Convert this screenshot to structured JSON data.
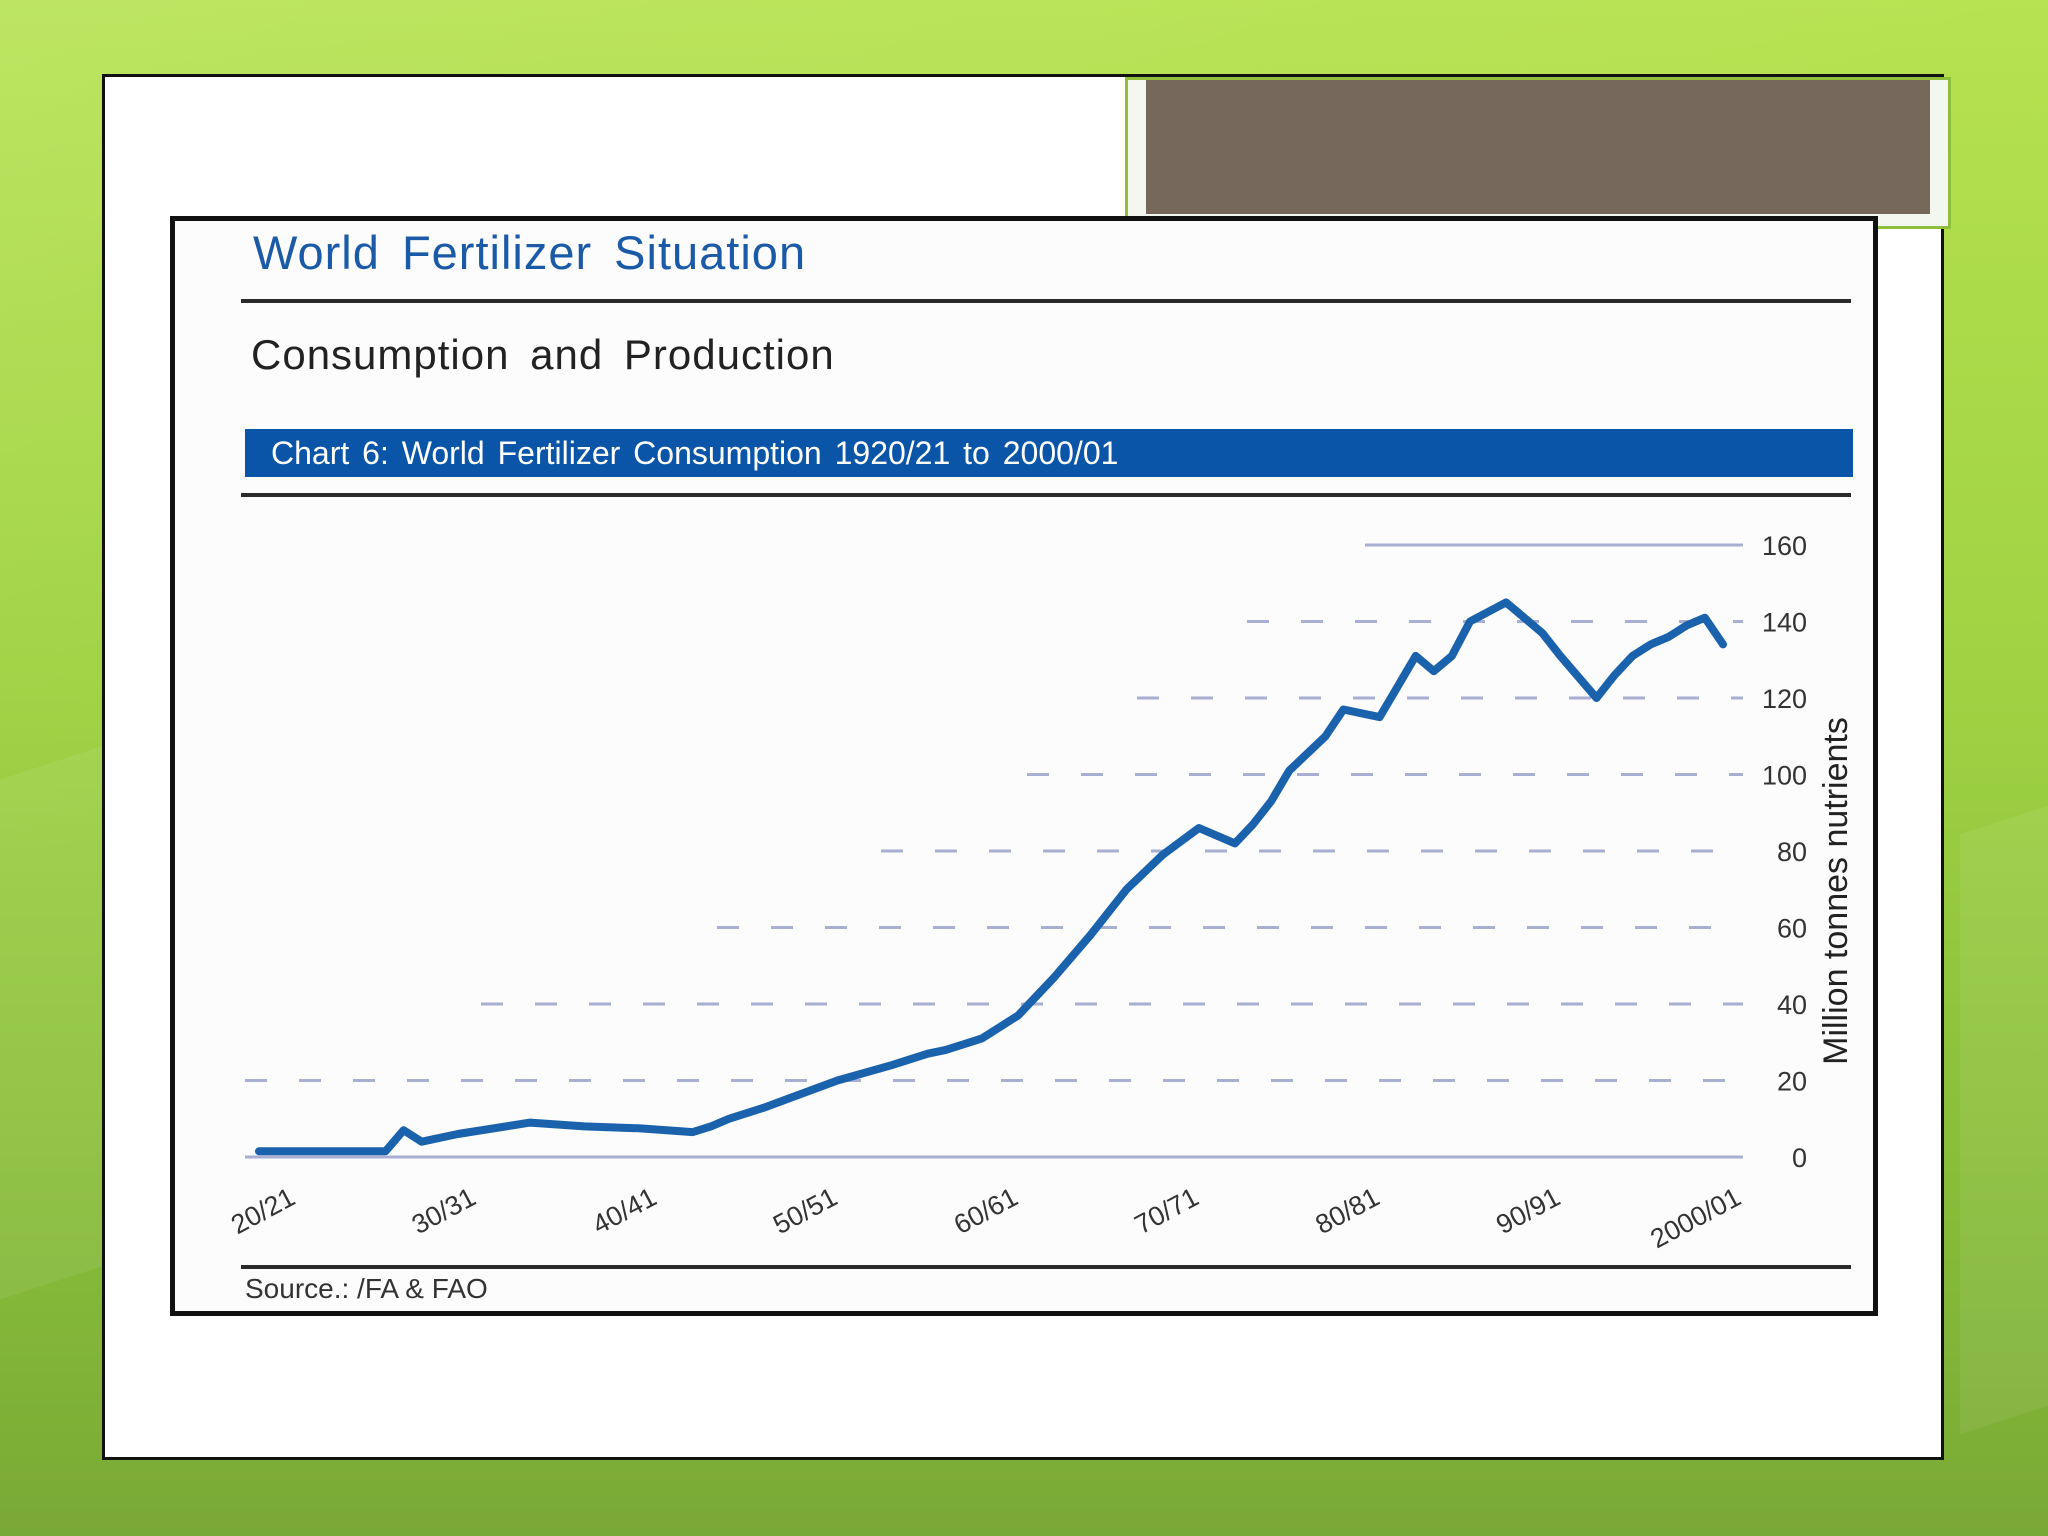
{
  "report": {
    "title": "World  Fertilizer  Situation",
    "subtitle": "Consumption  and  Production",
    "banner": "Chart  6: World  Fertilizer  Consumption  1920/21 to 2000/01",
    "source": "Source.: /FA & FAO"
  },
  "colors": {
    "line": "#1b62ad",
    "banner": "#0a55a8",
    "grid": "#a9aed3",
    "background_green": "#9fd243"
  },
  "chart_data": {
    "type": "line",
    "title": "Chart  6: World  Fertilizer  Consumption  1920/21 to 2000/01",
    "ylabel": "Million  tonnes  nutrients",
    "xlabel": "",
    "ylim": [
      0,
      160
    ],
    "xlim": [
      1920,
      2001
    ],
    "yaxis_position": "right",
    "yticks": [
      0,
      20,
      40,
      60,
      80,
      100,
      120,
      140,
      160
    ],
    "xticks": [
      {
        "x": 1920,
        "label": "20/21"
      },
      {
        "x": 1930,
        "label": "30/31"
      },
      {
        "x": 1940,
        "label": "40/41"
      },
      {
        "x": 1950,
        "label": "50/51"
      },
      {
        "x": 1960,
        "label": "60/61"
      },
      {
        "x": 1970,
        "label": "70/71"
      },
      {
        "x": 1980,
        "label": "80/81"
      },
      {
        "x": 1990,
        "label": "90/91"
      },
      {
        "x": 2000,
        "label": "2000/01"
      }
    ],
    "grid": "horizontal dashed",
    "series": [
      {
        "x": [
          1920,
          1924,
          1927,
          1928,
          1929,
          1931,
          1935,
          1938,
          1941,
          1944,
          1945,
          1946,
          1948,
          1950,
          1952,
          1955,
          1957,
          1958,
          1960,
          1962,
          1964,
          1966,
          1968,
          1970,
          1972,
          1974,
          1975,
          1976,
          1977,
          1979,
          1980,
          1981,
          1982,
          1983,
          1984,
          1985,
          1986,
          1987,
          1989,
          1990,
          1991,
          1992,
          1994,
          1995,
          1996,
          1997,
          1998,
          1999,
          2000,
          2001
        ],
        "y": [
          1.5,
          1.5,
          1.5,
          7,
          4,
          6,
          9,
          8,
          7.5,
          6.5,
          8,
          10,
          13,
          16.5,
          20,
          24,
          27,
          28,
          31,
          37,
          47,
          58,
          70,
          79,
          86,
          82,
          87,
          93,
          101,
          110,
          117,
          116,
          115,
          123,
          131,
          127,
          131,
          140,
          145,
          141,
          137,
          131,
          120,
          126,
          131,
          134,
          136,
          139,
          141,
          134
        ]
      }
    ]
  }
}
